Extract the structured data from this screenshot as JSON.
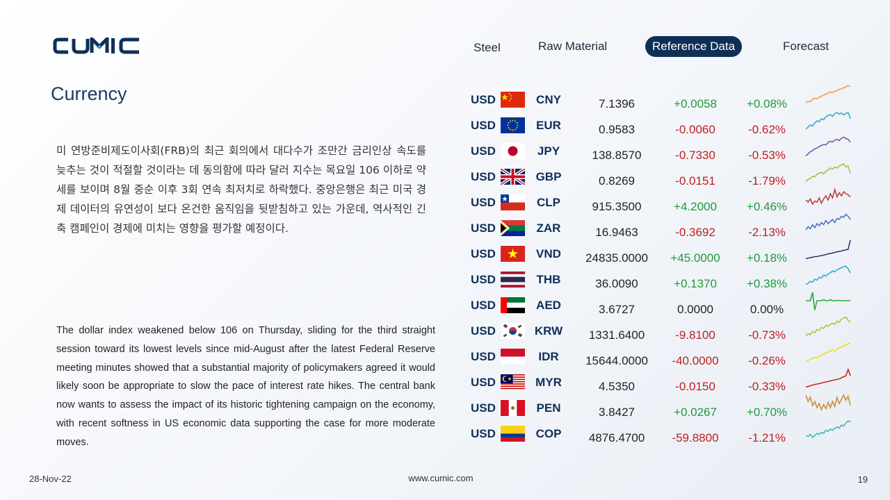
{
  "header": {
    "logo_text": "CUMIC",
    "nav": [
      {
        "label": "Steel",
        "active": false
      },
      {
        "label": "Raw Material",
        "active": false
      },
      {
        "label": "Reference Data",
        "active": true
      },
      {
        "label": "Forecast",
        "active": false
      }
    ]
  },
  "page": {
    "title": "Currency",
    "korean_text": "미 연방준비제도이사회(FRB)의 최근 회의에서 대다수가 조만간 금리인상 속도를 늦추는 것이 적절할 것이라는 데 동의함에 따라 달러 지수는 목요일 106 이하로 약세를 보이며 8월 중순 이후 3회 연속 최저치로 하락했다. 중앙은행은 최근 미국 경제 데이터의 유연성이 보다 온건한 움직임을 뒷받침하고 있는 가운데, 역사적인 긴축 캠페인이 경제에 미치는 영향을 평가할 예정이다.",
    "english_text": "The dollar index weakened below 106 on Thursday, sliding for the third straight session toward its lowest levels since mid-August after the latest Federal Reserve meeting minutes showed that a substantial majority of policymakers agreed it would likely soon be appropriate to slow the pace of interest rate hikes.  The central bank now wants to assess the impact of its historic tightening campaign on the economy, with recent softness in US economic data supporting the case for more moderate moves."
  },
  "currencies": [
    {
      "base": "USD",
      "quote": "CNY",
      "flag": "cn-flag",
      "rate": "7.1396",
      "change": "+0.0058",
      "pct": "+0.08%",
      "dir": "pos",
      "spark_color": "#f0a040",
      "trend": [
        0.15,
        0.2,
        0.18,
        0.3,
        0.35,
        0.32,
        0.4,
        0.45,
        0.5,
        0.55,
        0.6,
        0.65,
        0.62,
        0.7,
        0.72,
        0.78,
        0.8,
        0.85,
        0.9,
        0.95,
        0.92
      ]
    },
    {
      "base": "USD",
      "quote": "EUR",
      "flag": "eu-flag",
      "rate": "0.9583",
      "change": "-0.0060",
      "pct": "-0.62%",
      "dir": "neg",
      "spark_color": "#40a8c8",
      "trend": [
        0.1,
        0.2,
        0.3,
        0.25,
        0.4,
        0.5,
        0.45,
        0.6,
        0.55,
        0.7,
        0.75,
        0.8,
        0.72,
        0.85,
        0.9,
        0.82,
        0.88,
        0.78,
        0.85,
        0.9,
        0.6
      ]
    },
    {
      "base": "USD",
      "quote": "JPY",
      "flag": "jp-flag",
      "rate": "138.8570",
      "change": "-0.7330",
      "pct": "-0.53%",
      "dir": "neg",
      "spark_color": "#7a5ab0",
      "trend": [
        0.05,
        0.15,
        0.25,
        0.3,
        0.4,
        0.42,
        0.5,
        0.55,
        0.6,
        0.58,
        0.7,
        0.75,
        0.72,
        0.8,
        0.85,
        0.78,
        0.9,
        0.95,
        0.88,
        0.85,
        0.7
      ]
    },
    {
      "base": "USD",
      "quote": "GBP",
      "flag": "gb-flag",
      "rate": "0.8269",
      "change": "-0.0151",
      "pct": "-1.79%",
      "dir": "neg",
      "spark_color": "#a8c040",
      "trend": [
        0.05,
        0.15,
        0.2,
        0.3,
        0.28,
        0.4,
        0.45,
        0.5,
        0.42,
        0.55,
        0.6,
        0.7,
        0.65,
        0.75,
        0.7,
        0.8,
        0.85,
        0.9,
        0.75,
        0.8,
        0.45
      ]
    },
    {
      "base": "USD",
      "quote": "CLP",
      "flag": "cl-flag",
      "rate": "915.3500",
      "change": "+4.2000",
      "pct": "+0.46%",
      "dir": "pos",
      "spark_color": "#c04040",
      "trend": [
        0.4,
        0.3,
        0.45,
        0.2,
        0.35,
        0.3,
        0.5,
        0.25,
        0.45,
        0.6,
        0.4,
        0.7,
        0.5,
        0.9,
        0.55,
        0.75,
        0.6,
        0.8,
        0.7,
        0.65,
        0.55
      ]
    },
    {
      "base": "USD",
      "quote": "ZAR",
      "flag": "za-flag",
      "rate": "16.9463",
      "change": "-0.3692",
      "pct": "-2.13%",
      "dir": "neg",
      "spark_color": "#5078b8",
      "trend": [
        0.2,
        0.35,
        0.25,
        0.45,
        0.3,
        0.5,
        0.4,
        0.55,
        0.45,
        0.65,
        0.5,
        0.6,
        0.7,
        0.55,
        0.75,
        0.7,
        0.85,
        0.8,
        0.95,
        0.85,
        0.7
      ]
    },
    {
      "base": "USD",
      "quote": "VND",
      "flag": "vn-flag",
      "rate": "24835.0000",
      "change": "+45.0000",
      "pct": "+0.18%",
      "dir": "pos",
      "spark_color": "#1f3a6a",
      "trend": [
        0.05,
        0.08,
        0.1,
        0.12,
        0.15,
        0.15,
        0.18,
        0.2,
        0.22,
        0.25,
        0.28,
        0.3,
        0.32,
        0.35,
        0.38,
        0.4,
        0.42,
        0.45,
        0.48,
        0.5,
        0.95
      ]
    },
    {
      "base": "USD",
      "quote": "THB",
      "flag": "th-flag",
      "rate": "36.0090",
      "change": "+0.1370",
      "pct": "+0.38%",
      "dir": "pos",
      "spark_color": "#30b0d8",
      "trend": [
        0.05,
        0.1,
        0.2,
        0.15,
        0.3,
        0.25,
        0.4,
        0.35,
        0.5,
        0.45,
        0.55,
        0.6,
        0.7,
        0.65,
        0.75,
        0.8,
        0.85,
        0.9,
        0.92,
        0.8,
        0.6
      ]
    },
    {
      "base": "USD",
      "quote": "AED",
      "flag": "ae-flag",
      "rate": "3.6727",
      "change": "0.0000",
      "pct": "0.00%",
      "dir": "zero",
      "spark_color": "#28a840",
      "trend": [
        0.5,
        0.5,
        0.5,
        0.9,
        0.05,
        0.5,
        0.5,
        0.5,
        0.55,
        0.5,
        0.5,
        0.55,
        0.5,
        0.5,
        0.5,
        0.52,
        0.5,
        0.5,
        0.5,
        0.5,
        0.5
      ]
    },
    {
      "base": "USD",
      "quote": "KRW",
      "flag": "kr-flag",
      "rate": "1331.6400",
      "change": "-9.8100",
      "pct": "-0.73%",
      "dir": "neg",
      "spark_color": "#a8c840",
      "trend": [
        0.05,
        0.15,
        0.1,
        0.25,
        0.2,
        0.35,
        0.3,
        0.45,
        0.4,
        0.55,
        0.5,
        0.6,
        0.65,
        0.6,
        0.75,
        0.7,
        0.85,
        0.9,
        0.95,
        0.8,
        0.7
      ]
    },
    {
      "base": "USD",
      "quote": "IDR",
      "flag": "id-flag",
      "rate": "15644.0000",
      "change": "-40.0000",
      "pct": "-0.26%",
      "dir": "neg",
      "spark_color": "#e8e020",
      "trend": [
        0.05,
        0.1,
        0.15,
        0.2,
        0.25,
        0.2,
        0.3,
        0.35,
        0.4,
        0.45,
        0.5,
        0.55,
        0.6,
        0.55,
        0.65,
        0.7,
        0.75,
        0.8,
        0.85,
        0.9,
        0.95
      ]
    },
    {
      "base": "USD",
      "quote": "MYR",
      "flag": "my-flag",
      "rate": "4.5350",
      "change": "-0.0150",
      "pct": "-0.33%",
      "dir": "neg",
      "spark_color": "#d02020",
      "trend": [
        0.05,
        0.08,
        0.12,
        0.15,
        0.18,
        0.2,
        0.22,
        0.25,
        0.28,
        0.3,
        0.32,
        0.35,
        0.38,
        0.4,
        0.42,
        0.45,
        0.5,
        0.55,
        0.6,
        0.9,
        0.6
      ]
    },
    {
      "base": "USD",
      "quote": "PEN",
      "flag": "pe-flag",
      "rate": "3.8427",
      "change": "+0.0267",
      "pct": "+0.70%",
      "dir": "pos",
      "spark_color": "#c89040",
      "trend": [
        0.9,
        0.6,
        0.8,
        0.4,
        0.6,
        0.3,
        0.5,
        0.2,
        0.45,
        0.25,
        0.55,
        0.3,
        0.6,
        0.35,
        0.8,
        0.5,
        0.7,
        0.9,
        0.65,
        0.85,
        0.4
      ]
    },
    {
      "base": "USD",
      "quote": "COP",
      "flag": "co-flag",
      "rate": "4876.4700",
      "change": "-59.8800",
      "pct": "-1.21%",
      "dir": "neg",
      "spark_color": "#40b8c0",
      "trend": [
        0.2,
        0.15,
        0.25,
        0.1,
        0.2,
        0.3,
        0.25,
        0.35,
        0.3,
        0.45,
        0.4,
        0.5,
        0.45,
        0.55,
        0.6,
        0.55,
        0.7,
        0.65,
        0.8,
        0.9,
        0.85
      ]
    }
  ],
  "footer": {
    "date": "28-Nov-22",
    "url": "www.cumic.com",
    "page": "19"
  }
}
